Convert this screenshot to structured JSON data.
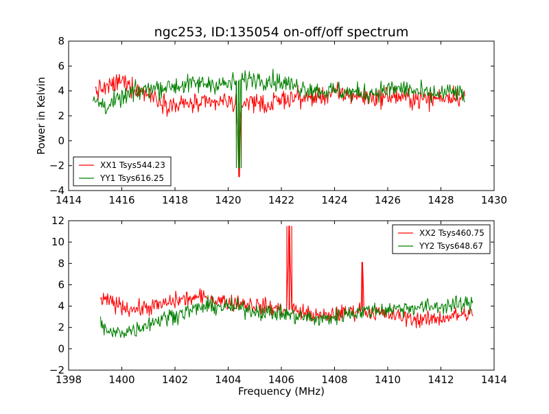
{
  "figure": {
    "title": "ngc253, ID:135054 on-off/off spectrum"
  },
  "chart_data": [
    {
      "type": "line",
      "ylabel": "Power in Kelvin",
      "xlabel": "",
      "xlim": [
        1414,
        1430
      ],
      "ylim": [
        -4,
        8
      ],
      "xticks": [
        1414,
        1416,
        1418,
        1420,
        1422,
        1424,
        1426,
        1428,
        1430
      ],
      "yticks": [
        -4,
        -2,
        0,
        2,
        4,
        6,
        8
      ],
      "legend_position": "lower-left",
      "series": [
        {
          "name": "XX1 Tsys544.23",
          "color": "#ff0000",
          "x": [
            1415.0,
            1415.5,
            1416.0,
            1416.5,
            1417.0,
            1417.5,
            1418.0,
            1418.5,
            1419.0,
            1419.5,
            1420.0,
            1420.3,
            1420.4,
            1420.5,
            1421.0,
            1421.5,
            1422.0,
            1422.5,
            1423.0,
            1423.5,
            1424.0,
            1424.5,
            1425.0,
            1425.5,
            1426.0,
            1426.5,
            1427.0,
            1427.5,
            1428.0,
            1428.5,
            1428.9
          ],
          "values": [
            4.0,
            4.3,
            4.8,
            4.2,
            3.8,
            3.2,
            2.8,
            3.0,
            2.9,
            3.0,
            3.2,
            3.0,
            -2.9,
            3.1,
            3.2,
            2.8,
            3.3,
            3.5,
            3.4,
            3.6,
            3.8,
            3.7,
            3.6,
            3.4,
            3.6,
            3.5,
            3.4,
            3.3,
            3.5,
            3.6,
            3.5
          ]
        },
        {
          "name": "YY1 Tsys616.25",
          "color": "#008000",
          "x": [
            1414.9,
            1415.5,
            1416.0,
            1416.5,
            1417.0,
            1417.5,
            1418.0,
            1418.5,
            1419.0,
            1419.5,
            1420.0,
            1420.3,
            1420.4,
            1420.5,
            1421.0,
            1421.5,
            1422.0,
            1422.5,
            1423.0,
            1423.5,
            1424.0,
            1424.5,
            1425.0,
            1425.5,
            1426.0,
            1426.5,
            1427.0,
            1427.5,
            1428.0,
            1428.5,
            1428.9
          ],
          "values": [
            3.2,
            2.8,
            3.4,
            3.9,
            4.2,
            4.3,
            4.4,
            4.5,
            4.6,
            4.6,
            4.5,
            4.8,
            -2.2,
            4.9,
            5.0,
            4.9,
            4.7,
            4.4,
            4.2,
            4.0,
            4.0,
            3.9,
            3.8,
            3.9,
            4.1,
            4.2,
            4.0,
            3.7,
            3.8,
            3.9,
            3.6
          ]
        }
      ]
    },
    {
      "type": "line",
      "ylabel": "",
      "xlabel": "Frequency (MHz)",
      "xlim": [
        1398,
        1414
      ],
      "ylim": [
        -2,
        12
      ],
      "xticks": [
        1398,
        1400,
        1402,
        1404,
        1406,
        1408,
        1410,
        1412,
        1414
      ],
      "yticks": [
        -2,
        0,
        2,
        4,
        6,
        8,
        10,
        12
      ],
      "legend_position": "upper-right",
      "series": [
        {
          "name": "XX2 Tsys460.75",
          "color": "#ff0000",
          "x": [
            1399.2,
            1399.5,
            1400.0,
            1400.5,
            1401.0,
            1401.5,
            1402.0,
            1402.5,
            1403.0,
            1403.5,
            1404.0,
            1404.5,
            1405.0,
            1405.5,
            1406.0,
            1406.2,
            1406.3,
            1406.4,
            1407.0,
            1407.5,
            1408.0,
            1408.5,
            1409.0,
            1409.05,
            1409.1,
            1409.5,
            1410.0,
            1410.5,
            1411.0,
            1411.5,
            1412.0,
            1412.5,
            1413.2
          ],
          "values": [
            4.4,
            4.5,
            4.0,
            3.7,
            3.9,
            4.1,
            4.5,
            4.7,
            4.8,
            4.6,
            4.4,
            4.3,
            4.1,
            3.9,
            3.7,
            3.6,
            11.5,
            3.7,
            3.3,
            3.0,
            3.2,
            3.4,
            3.7,
            8.1,
            3.6,
            3.4,
            3.2,
            3.0,
            2.8,
            2.7,
            2.9,
            3.1,
            3.3
          ]
        },
        {
          "name": "YY2 Tsys648.67",
          "color": "#008000",
          "x": [
            1399.2,
            1399.5,
            1400.0,
            1400.5,
            1401.0,
            1401.5,
            1402.0,
            1402.5,
            1403.0,
            1403.5,
            1404.0,
            1404.5,
            1405.0,
            1405.5,
            1406.0,
            1406.5,
            1407.0,
            1407.5,
            1408.0,
            1408.5,
            1409.0,
            1409.5,
            1410.0,
            1410.5,
            1411.0,
            1411.5,
            1412.0,
            1412.5,
            1413.2
          ],
          "values": [
            2.5,
            1.4,
            1.6,
            1.8,
            2.4,
            2.8,
            3.2,
            3.5,
            3.9,
            4.0,
            3.9,
            3.8,
            3.6,
            3.4,
            3.3,
            3.1,
            2.9,
            2.7,
            3.0,
            3.3,
            3.5,
            3.6,
            3.7,
            3.8,
            3.9,
            3.9,
            4.0,
            4.1,
            4.2
          ]
        }
      ]
    }
  ]
}
